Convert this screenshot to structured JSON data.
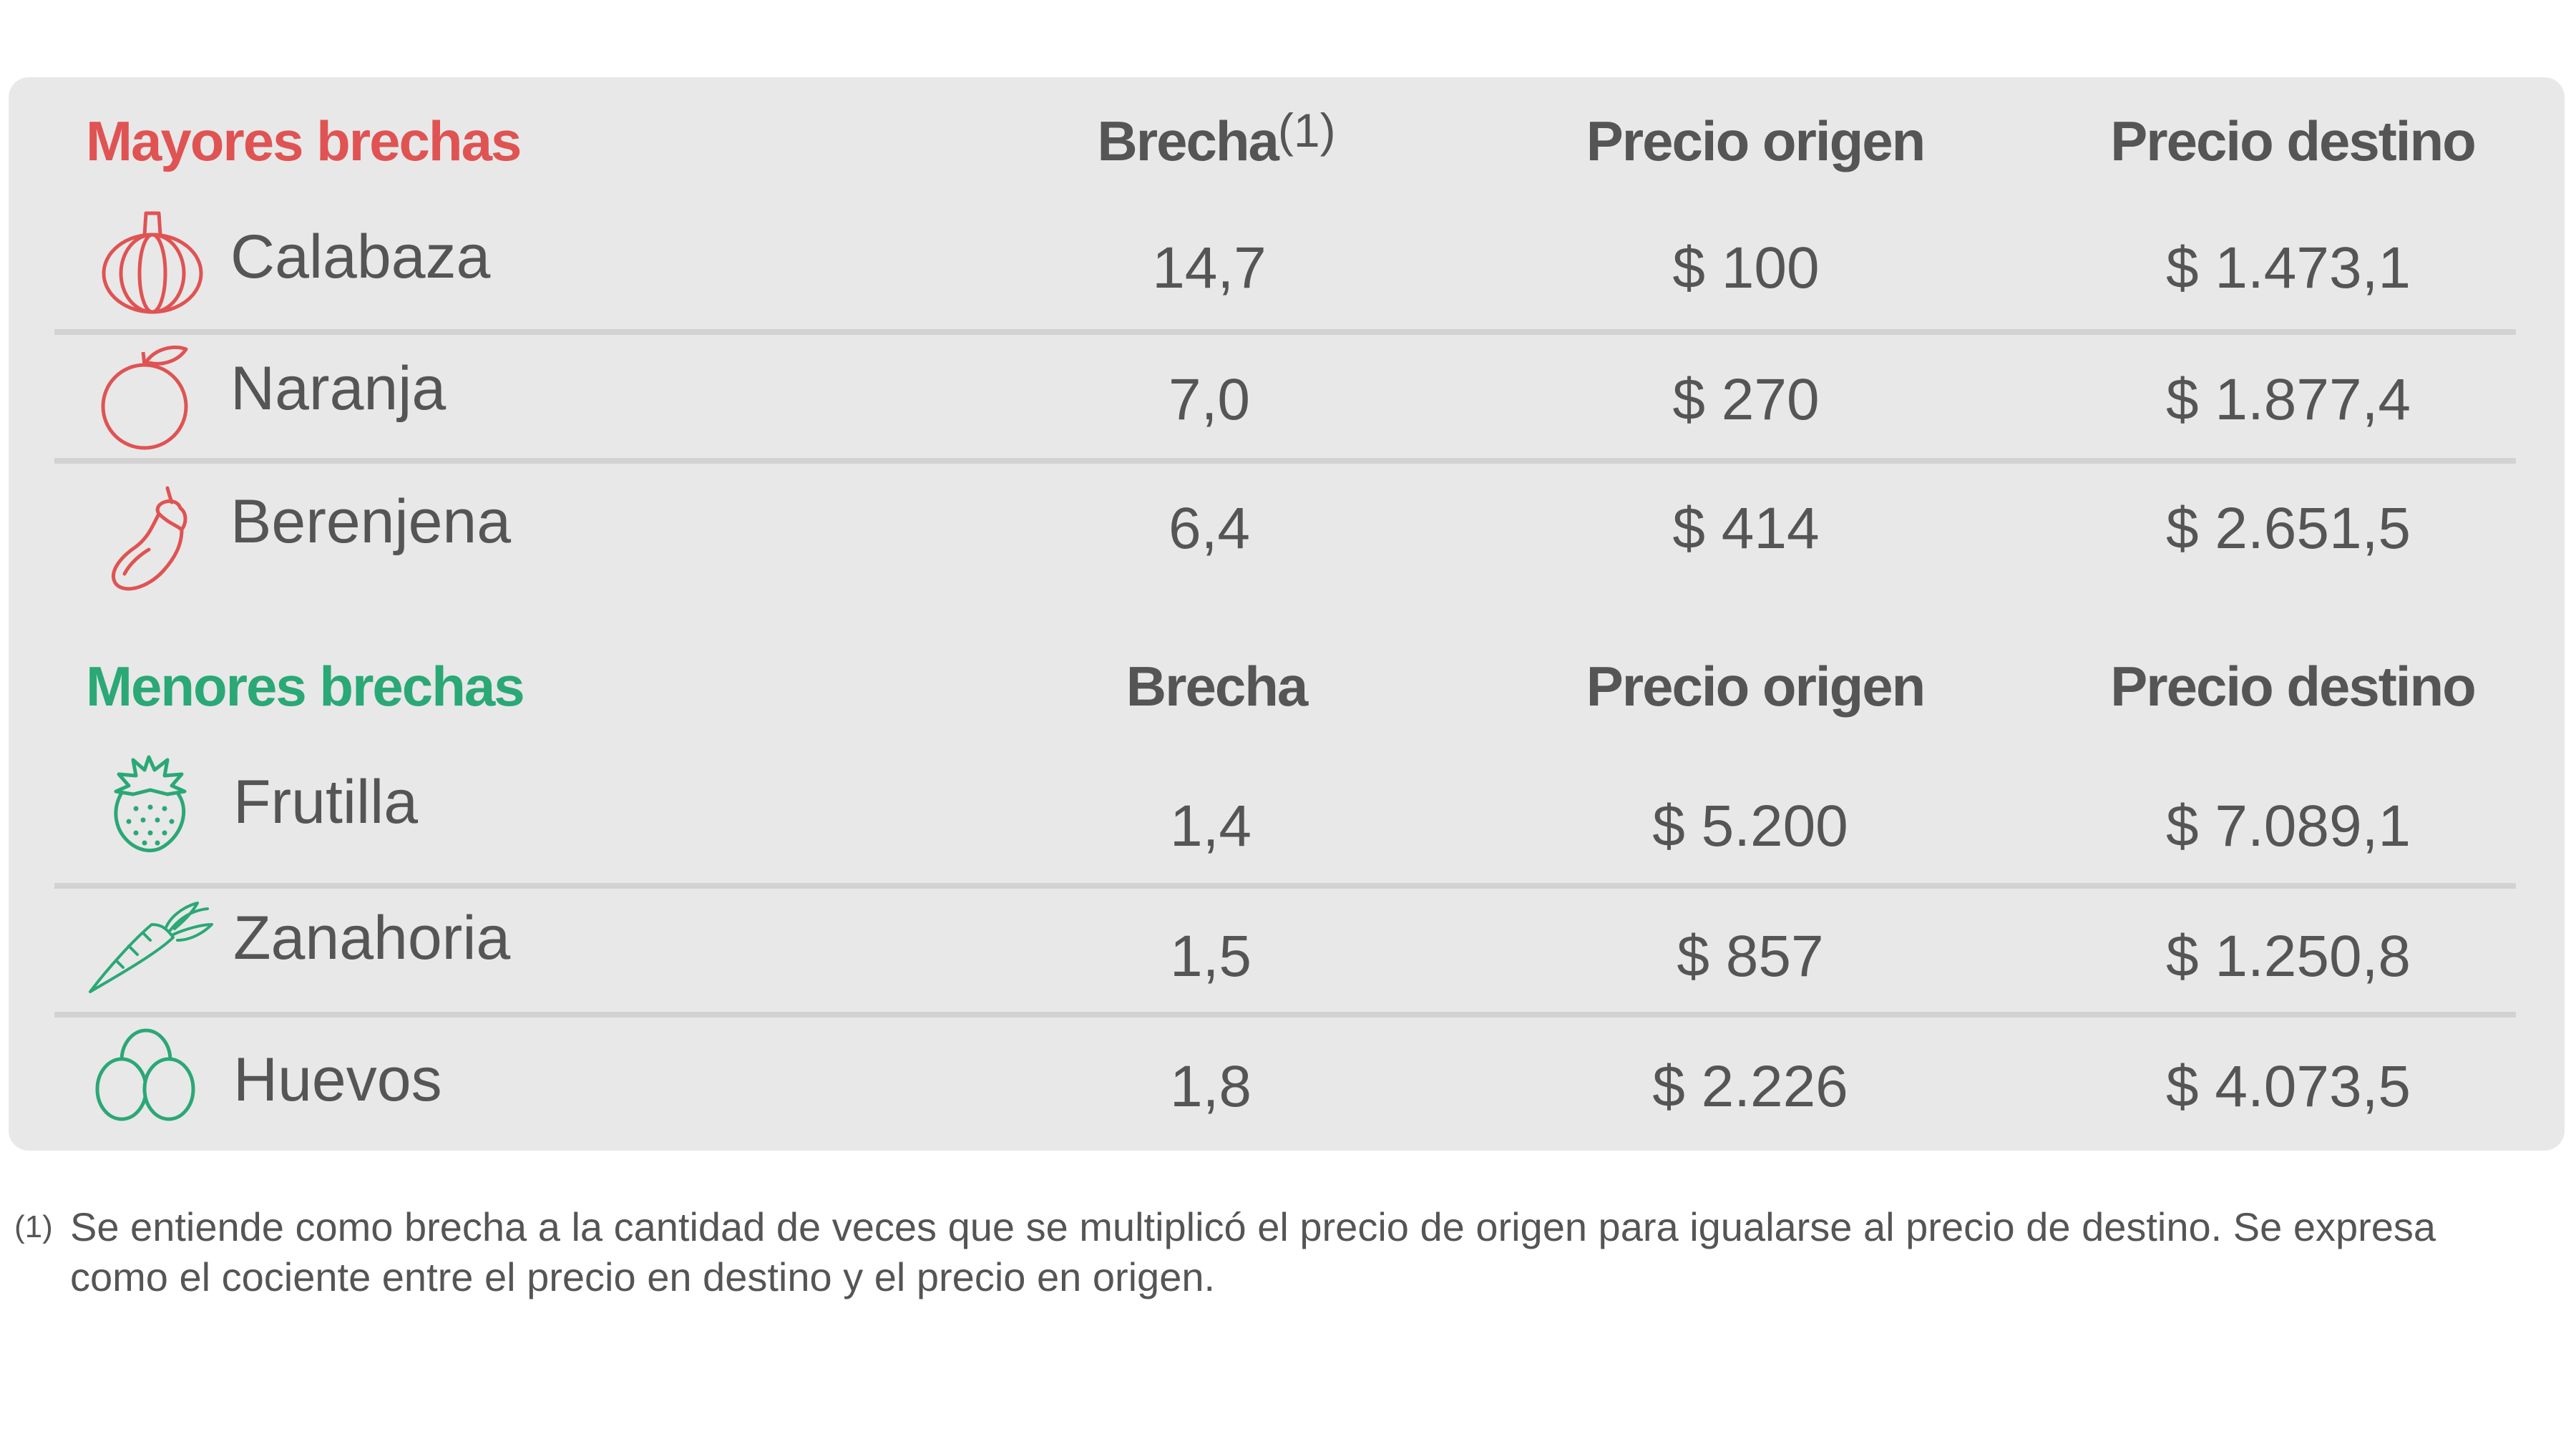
{
  "colors": {
    "mayores": "#e05353",
    "menores": "#2aa876",
    "text": "#555555",
    "panel": "#e8e8e8"
  },
  "mayores": {
    "title": "Mayores brechas",
    "headers": {
      "brecha": "Brecha",
      "brecha_note": "(1)",
      "origen": "Precio origen",
      "destino": "Precio destino"
    },
    "rows": [
      {
        "icon": "pumpkin-icon",
        "name": "Calabaza",
        "brecha": "14,7",
        "origen": "$ 100",
        "destino": "$ 1.473,1"
      },
      {
        "icon": "orange-icon",
        "name": "Naranja",
        "brecha": "7,0",
        "origen": "$ 270",
        "destino": "$ 1.877,4"
      },
      {
        "icon": "eggplant-icon",
        "name": "Berenjena",
        "brecha": "6,4",
        "origen": "$ 414",
        "destino": "$ 2.651,5"
      }
    ]
  },
  "menores": {
    "title": "Menores brechas",
    "headers": {
      "brecha": "Brecha",
      "origen": "Precio origen",
      "destino": "Precio destino"
    },
    "rows": [
      {
        "icon": "strawberry-icon",
        "name": "Frutilla",
        "brecha": "1,4",
        "origen": "$ 5.200",
        "destino": "$ 7.089,1"
      },
      {
        "icon": "carrot-icon",
        "name": "Zanahoria",
        "brecha": "1,5",
        "origen": "$ 857",
        "destino": "$ 1.250,8"
      },
      {
        "icon": "eggs-icon",
        "name": "Huevos",
        "brecha": "1,8",
        "origen": "$ 2.226",
        "destino": "$ 4.073,5"
      }
    ]
  },
  "footnote": {
    "mark": "(1)",
    "text": "Se entiende como brecha a la cantidad de veces que se multiplicó el precio de origen para igualarse al precio de destino. Se expresa como el cociente entre el precio en destino y el precio en origen."
  }
}
